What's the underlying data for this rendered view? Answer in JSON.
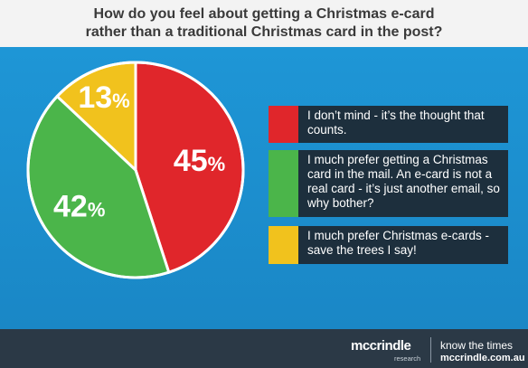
{
  "title": {
    "line1": "How do you feel about getting a Christmas e-card",
    "line2": "rather than a traditional Christmas card in the post?"
  },
  "chart_data": {
    "type": "pie",
    "slices": [
      {
        "label": "45%",
        "value": 45,
        "color": "#e0262b"
      },
      {
        "label": "42%",
        "value": 42,
        "color": "#4bb54a"
      },
      {
        "label": "13%",
        "value": 13,
        "color": "#f1c21d"
      }
    ]
  },
  "legend": [
    {
      "text": "I don’t mind - it’s the thought that counts.",
      "color": "#e0262b"
    },
    {
      "text": "I much prefer getting a Christmas card in the mail. An e-card is not a real card - it’s just another email, so why bother?",
      "color": "#4bb54a"
    },
    {
      "text": "I much prefer Christmas e-cards - save the trees I say!",
      "color": "#f1c21d"
    }
  ],
  "footer": {
    "brand": "mccrindle",
    "brand_sub": "research",
    "tagline": "know the times",
    "url": "mccrindle.com.au"
  }
}
